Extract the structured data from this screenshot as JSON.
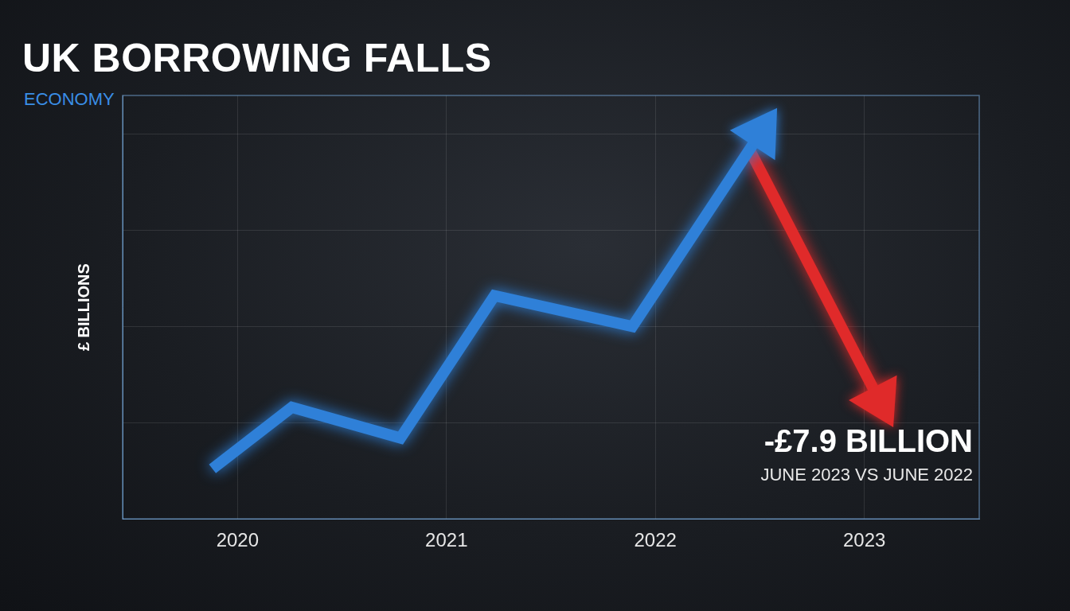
{
  "chart_data": {
    "type": "line",
    "title": "UK BORROWING FALLS",
    "subtitle": "ECONOMY",
    "y_label": "£ BILLIONS",
    "annotations": [
      "-£7.9 BILLION",
      "JUNE 2023 VS JUNE 2022"
    ],
    "xlim": [
      2019.45,
      2023.55
    ],
    "xticks": [
      2020,
      2021,
      2022,
      2023
    ],
    "ylim": [
      0,
      110
    ],
    "yticks": [
      0,
      25,
      50,
      75,
      100
    ],
    "grid": true,
    "tick_labels": "x",
    "series": [
      {
        "color": "#2f80d8",
        "marker": "arrow",
        "x": [
          2019.88,
          2020.26,
          2020.78,
          2021.23,
          2021.89,
          2022.5
        ],
        "values": [
          13,
          29,
          21,
          58,
          50,
          100
        ]
      },
      {
        "color": "#e02a2a",
        "marker": "arrow",
        "x": [
          2022.45,
          2023.07
        ],
        "values": [
          96,
          31
        ]
      }
    ]
  }
}
